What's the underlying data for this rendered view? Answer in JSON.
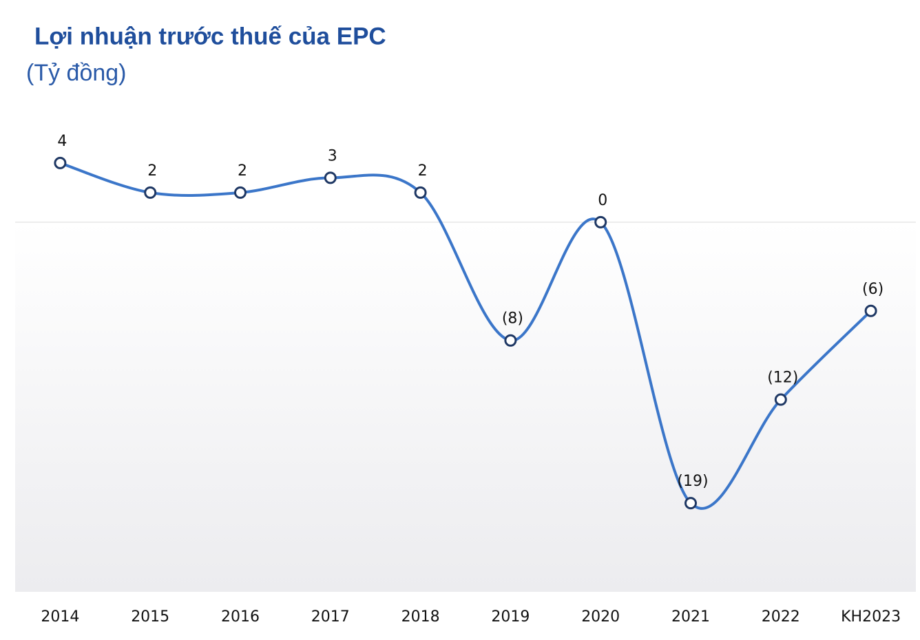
{
  "chart_data": {
    "type": "line",
    "title": "Lợi nhuận trước thuế của EPC",
    "subtitle": "(Tỷ đồng)",
    "categories": [
      "2014",
      "2015",
      "2016",
      "2017",
      "2018",
      "2019",
      "2020",
      "2021",
      "2022",
      "KH2023"
    ],
    "values": [
      4,
      2,
      2,
      3,
      2,
      -8,
      0,
      -19,
      -12,
      -6
    ],
    "value_labels": [
      "4",
      "2",
      "2",
      "3",
      "2",
      "(8)",
      "0",
      "(19)",
      "(12)",
      "(6)"
    ],
    "color": "#3b76c9",
    "smooth": true,
    "ylim": [
      -25,
      10
    ]
  }
}
